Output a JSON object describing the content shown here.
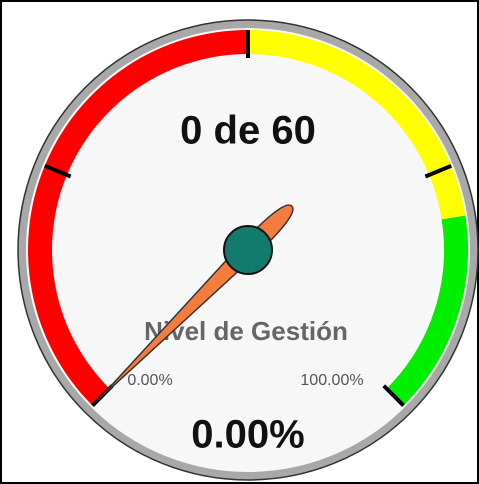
{
  "chart_data": {
    "type": "gauge",
    "title": "0 de 60",
    "label": "Nivel de Gestión",
    "values": [
      0
    ],
    "value_labels": [
      "0.00%"
    ],
    "ylim": [
      0,
      100
    ],
    "ylim_labels": [
      "0.00%",
      "100.00%"
    ],
    "major_ticks": [
      0,
      25,
      50,
      75,
      100
    ],
    "bands": [
      {
        "from": 0,
        "to": 50,
        "color": "#ff0000"
      },
      {
        "from": 50,
        "to": 80,
        "color": "#ffff00"
      },
      {
        "from": 80,
        "to": 100,
        "color": "#00ee00"
      }
    ],
    "needle_color": "#f47c3c",
    "hub_color": "#137a6e"
  }
}
